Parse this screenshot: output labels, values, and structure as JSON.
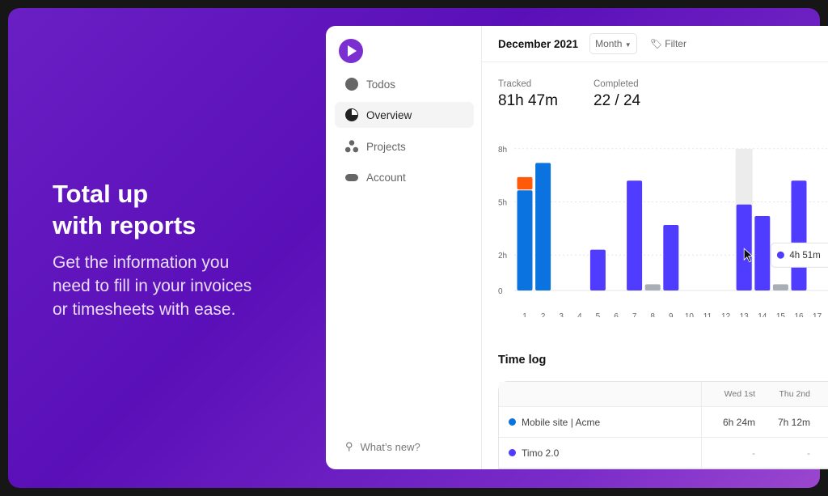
{
  "hero": {
    "title": "Total up\nwith reports",
    "subtitle": "Get the information you\nneed to fill in your invoices\nor timesheets with ease."
  },
  "sidebar": {
    "items": [
      {
        "label": "Todos",
        "icon": "check-circle-icon"
      },
      {
        "label": "Overview",
        "icon": "pie-chart-icon",
        "active": true
      },
      {
        "label": "Projects",
        "icon": "dots-icon"
      },
      {
        "label": "Account",
        "icon": "toggle-icon"
      }
    ],
    "whats_new": "What’s new?"
  },
  "toolbar": {
    "period": "December 2021",
    "range": "Month",
    "filter": "Filter"
  },
  "stats": {
    "tracked_label": "Tracked",
    "tracked_value": "81h 47m",
    "completed_label": "Completed",
    "completed_value": "22 / 24"
  },
  "colors": {
    "blue": "#0b73e0",
    "indigo": "#4f3cff",
    "orange": "#ff5a0a",
    "gray": "#a9aeb6",
    "brand": "#7b2fd0"
  },
  "chart_data": {
    "type": "bar",
    "stacked": true,
    "categories": [
      "1",
      "2",
      "3",
      "4",
      "5",
      "6",
      "7",
      "8",
      "9",
      "10",
      "11",
      "12",
      "13",
      "14",
      "15",
      "16",
      "17"
    ],
    "yticks": [
      {
        "v": 0,
        "label": "0"
      },
      {
        "v": 2,
        "label": "2h"
      },
      {
        "v": 5,
        "label": "5h"
      },
      {
        "v": 8,
        "label": "8h"
      }
    ],
    "ylim": [
      0,
      8
    ],
    "series": [
      {
        "color": "#0b73e0",
        "values": [
          5.65,
          7.2,
          0,
          0,
          0,
          0,
          0,
          0,
          0,
          0,
          0,
          0,
          0,
          0,
          0,
          0,
          0
        ]
      },
      {
        "color": "#ff5a0a",
        "values": [
          0.75,
          0,
          0,
          0,
          0,
          0,
          0,
          0,
          0,
          0,
          0,
          0,
          0,
          0,
          0,
          0,
          0
        ]
      },
      {
        "color": "#4f3cff",
        "values": [
          0,
          0,
          0,
          0,
          2.3,
          0,
          6.2,
          0,
          3.7,
          0,
          0,
          0,
          4.85,
          4.2,
          0,
          6.2,
          0
        ]
      },
      {
        "color": "#a9aeb6",
        "values": [
          0,
          0,
          0,
          0,
          0,
          0,
          0,
          0.35,
          0,
          0,
          0,
          0,
          0,
          0,
          0.35,
          0,
          0
        ]
      }
    ],
    "highlight": "13",
    "tooltip": "4h 51m"
  },
  "timelog": {
    "title": "Time log",
    "columns": [
      "Wed 1st",
      "Thu 2nd"
    ],
    "rows": [
      {
        "name": "Mobile site | Acme",
        "color": "#0b73e0",
        "values": [
          "6h 24m",
          "7h 12m"
        ]
      },
      {
        "name": "Timo 2.0",
        "color": "#4f3cff",
        "values": [
          "-",
          "-"
        ]
      }
    ]
  }
}
